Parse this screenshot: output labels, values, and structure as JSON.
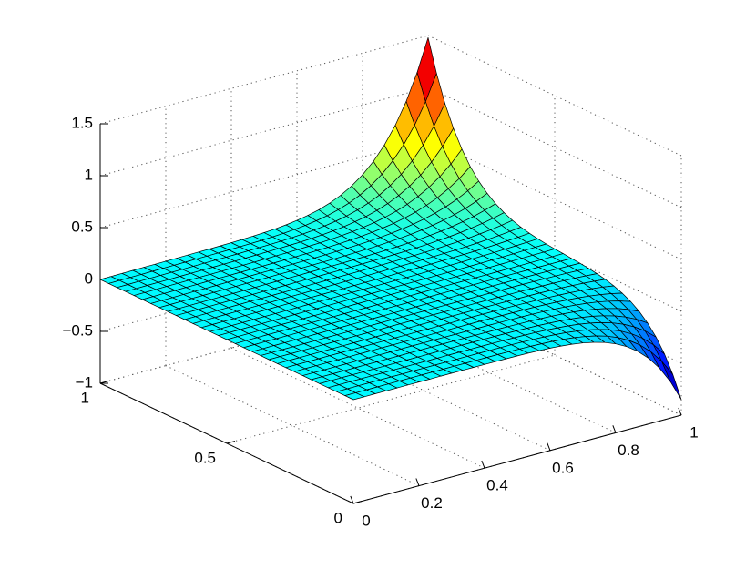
{
  "chart_data": {
    "type": "surface",
    "title": "",
    "xlabel": "",
    "ylabel": "",
    "zlabel": "",
    "xlim": [
      0,
      1
    ],
    "ylim": [
      0,
      1
    ],
    "zlim": [
      -1,
      1.5
    ],
    "x_ticks": [
      {
        "value": 0,
        "label": "0"
      },
      {
        "value": 0.2,
        "label": "0.2"
      },
      {
        "value": 0.4,
        "label": "0.4"
      },
      {
        "value": 0.6,
        "label": "0.6"
      },
      {
        "value": 0.8,
        "label": "0.8"
      },
      {
        "value": 1,
        "label": "1"
      }
    ],
    "y_ticks": [
      {
        "value": 0,
        "label": "0"
      },
      {
        "value": 0.5,
        "label": "0.5"
      },
      {
        "value": 1,
        "label": "1"
      }
    ],
    "z_ticks": [
      {
        "value": -1,
        "label": "−1"
      },
      {
        "value": -0.5,
        "label": "−0.5"
      },
      {
        "value": 0,
        "label": "0"
      },
      {
        "value": 0.5,
        "label": "0.5"
      },
      {
        "value": 1,
        "label": "1"
      },
      {
        "value": 1.5,
        "label": "1.5"
      }
    ],
    "grid": true,
    "colormap": "jet",
    "mesh_resolution": 30,
    "surface_shape": "near-flat sheet at z≈0, sharp peak ≈1.45 at corner (x=1, y=1), dip ≈−0.85 at corner (x=1, y=0)",
    "corner_values": {
      "x0_y0": 0,
      "x0_y1": 0,
      "x1_y1": 1.45,
      "x1_y0": -0.85
    }
  }
}
